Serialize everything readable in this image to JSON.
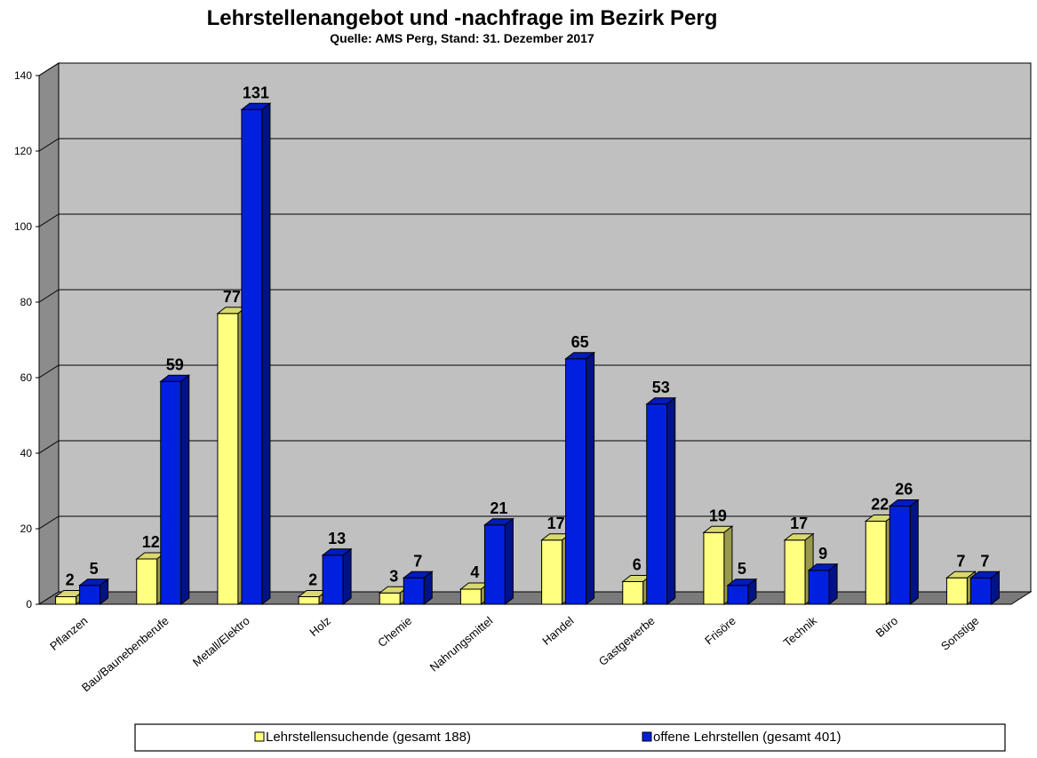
{
  "chart_data": {
    "type": "bar",
    "title": "Lehrstellenangebot und -nachfrage im Bezirk Perg",
    "subtitle": "Quelle: AMS Perg, Stand: 31. Dezember 2017",
    "categories": [
      "Pflanzen",
      "Bau/Baunebenberufe",
      "Metall/Elektro",
      "Holz",
      "Chemie",
      "Nahrungsmittel",
      "Handel",
      "Gastgewerbe",
      "Frisöre",
      "Technik",
      "Büro",
      "Sonstige"
    ],
    "series": [
      {
        "name": "Lehrstellensuchende (gesamt 188)",
        "color": "#ffff80",
        "values": [
          2,
          12,
          77,
          2,
          3,
          4,
          17,
          6,
          19,
          17,
          22,
          7
        ]
      },
      {
        "name": "offene Lehrstellen (gesamt 401)",
        "color": "#0020e0",
        "values": [
          5,
          59,
          131,
          13,
          7,
          21,
          65,
          53,
          5,
          9,
          26,
          7
        ]
      }
    ],
    "yticks": [
      "0",
      "20",
      "40",
      "60",
      "80",
      "100",
      "120",
      "140"
    ],
    "ylim": [
      0,
      140
    ],
    "grid": true,
    "legend_position": "bottom"
  }
}
